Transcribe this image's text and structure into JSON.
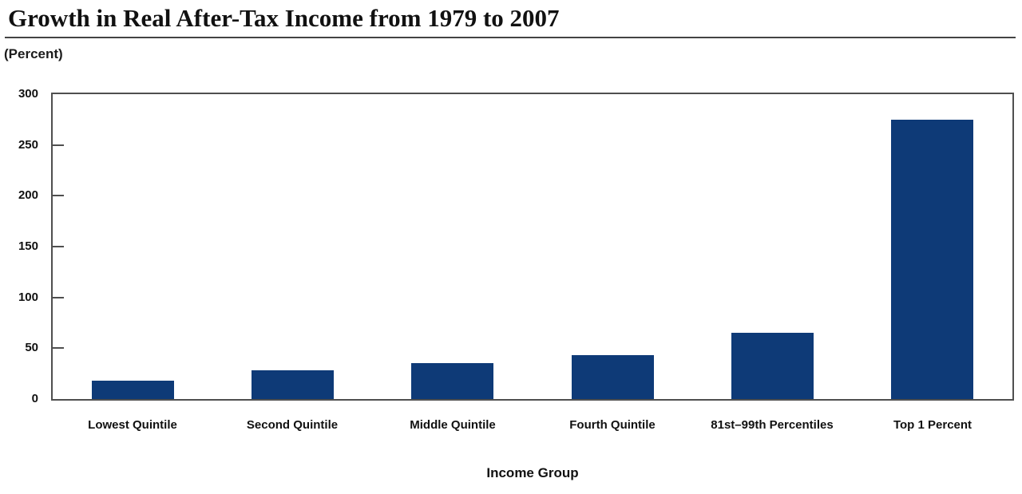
{
  "page": {
    "title": "Growth in Real After-Tax Income from 1979 to 2007"
  },
  "chart_data": {
    "type": "bar",
    "title": "Growth in Real After-Tax Income from 1979 to 2007",
    "unit_label": "(Percent)",
    "xlabel": "Income Group",
    "ylabel": "(Percent)",
    "categories": [
      "Lowest Quintile",
      "Second Quintile",
      "Middle Quintile",
      "Fourth Quintile",
      "81st–99th Percentiles",
      "Top 1 Percent"
    ],
    "values": [
      18,
      28,
      35,
      43,
      65,
      275
    ],
    "ylim": [
      0,
      300
    ],
    "yticks": [
      0,
      50,
      100,
      150,
      200,
      250,
      300
    ],
    "grid": false,
    "legend_position": "none",
    "colors": {
      "bar": "#0e3a77",
      "axis": "#4f4f4f",
      "text": "#111111"
    }
  }
}
